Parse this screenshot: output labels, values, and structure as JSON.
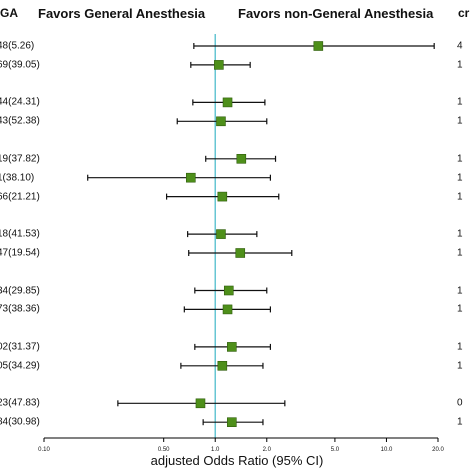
{
  "headers": {
    "left_code": "GA",
    "favors_ga": "Favors General Anesthesia",
    "favors_non_ga": "Favors non-General Anesthesia",
    "right_code": "cr"
  },
  "colors": {
    "marker": "#4e8f1a",
    "marker_border": "#2f5d0c",
    "reference_line": "#5bc2d0",
    "whisker": "#111111"
  },
  "chart_data": {
    "type": "scatter",
    "subtype": "forest-plot",
    "x_scale": "log",
    "xlim": [
      0.1,
      20.0
    ],
    "xlabel": "adjusted Odds Ratio (95% CI)",
    "x_ticks": [
      {
        "value": 0.1,
        "label": "0.10"
      },
      {
        "value": 0.5,
        "label": "0.50"
      },
      {
        "value": 1.0,
        "label": "1.0"
      },
      {
        "value": 2.0,
        "label": "2.0"
      },
      {
        "value": 5.0,
        "label": "5.0"
      },
      {
        "value": 10.0,
        "label": "10.0"
      },
      {
        "value": 20.0,
        "label": "20.0"
      }
    ],
    "reference_line": 1.0,
    "rows": [
      {
        "label": "48(5.26)",
        "right": "4",
        "or": 4.0,
        "lo": 0.75,
        "hi": 19.0,
        "group": 0
      },
      {
        "label": "69(39.05)",
        "right": "1",
        "or": 1.05,
        "lo": 0.72,
        "hi": 1.6,
        "group": 0
      },
      {
        "label": "44(24.31)",
        "right": "1",
        "or": 1.18,
        "lo": 0.74,
        "hi": 1.95,
        "group": 1
      },
      {
        "label": "43(52.38)",
        "right": "1",
        "or": 1.08,
        "lo": 0.6,
        "hi": 2.0,
        "group": 1
      },
      {
        "label": "19(37.82)",
        "right": "1",
        "or": 1.42,
        "lo": 0.88,
        "hi": 2.25,
        "group": 2
      },
      {
        "label": "1(38.10)",
        "right": "1",
        "or": 0.72,
        "lo": 0.18,
        "hi": 2.1,
        "group": 2
      },
      {
        "label": "66(21.21)",
        "right": "1",
        "or": 1.1,
        "lo": 0.52,
        "hi": 2.35,
        "group": 2
      },
      {
        "label": "18(41.53)",
        "right": "1",
        "or": 1.08,
        "lo": 0.69,
        "hi": 1.75,
        "group": 3
      },
      {
        "label": "47(19.54)",
        "right": "1",
        "or": 1.4,
        "lo": 0.7,
        "hi": 2.8,
        "group": 3
      },
      {
        "label": "34(29.85)",
        "right": "1",
        "or": 1.2,
        "lo": 0.76,
        "hi": 2.0,
        "group": 4
      },
      {
        "label": "73(38.36)",
        "right": "1",
        "or": 1.18,
        "lo": 0.66,
        "hi": 2.1,
        "group": 4
      },
      {
        "label": "02(31.37)",
        "right": "1",
        "or": 1.25,
        "lo": 0.76,
        "hi": 2.1,
        "group": 5
      },
      {
        "label": "05(34.29)",
        "right": "1",
        "or": 1.1,
        "lo": 0.63,
        "hi": 1.9,
        "group": 5
      },
      {
        "label": "23(47.83)",
        "right": "0",
        "or": 0.82,
        "lo": 0.27,
        "hi": 2.55,
        "group": 6
      },
      {
        "label": "84(30.98)",
        "right": "1",
        "or": 1.25,
        "lo": 0.85,
        "hi": 1.9,
        "group": 6
      }
    ]
  }
}
